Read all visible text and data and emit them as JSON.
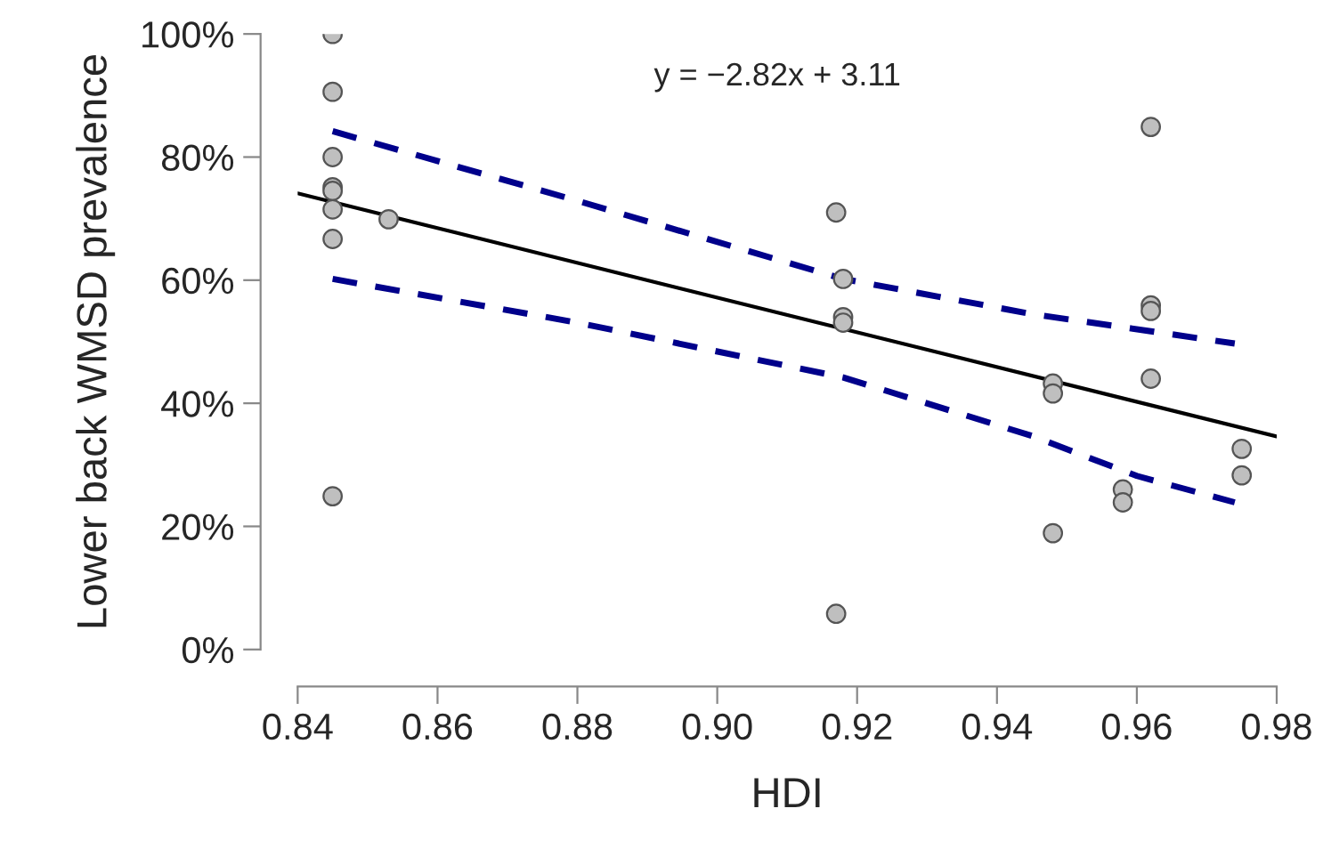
{
  "chart_data": {
    "type": "scatter",
    "xlabel": "HDI",
    "ylabel": "Lower back WMSD prevalence",
    "annotations": [
      "y = −2.82x + 3.11"
    ],
    "series": [
      {
        "color": "#bfbfbf",
        "marker": "circle",
        "x": [
          0.845,
          0.845,
          0.845,
          0.845,
          0.845,
          0.845,
          0.845,
          0.845,
          0.853,
          0.917,
          0.917,
          0.918,
          0.918,
          0.918,
          0.948,
          0.948,
          0.948,
          0.958,
          0.958,
          0.962,
          0.962,
          0.962,
          0.962,
          0.975,
          0.975
        ],
        "values": [
          100,
          90.6,
          80,
          75.1,
          74.5,
          71.5,
          66.7,
          24.9,
          69.9,
          71.0,
          5.8,
          60.2,
          54.0,
          53.1,
          43.2,
          41.6,
          18.9,
          26.0,
          23.9,
          84.9,
          55.9,
          55.0,
          44.0,
          32.6,
          28.3
        ]
      },
      {
        "type": "line",
        "color": "#000000",
        "line_style": "solid",
        "x": [
          0.84,
          0.98
        ],
        "values": [
          74.1,
          34.6
        ]
      },
      {
        "type": "line",
        "color": "#00008b",
        "line_style": "dashed",
        "x": [
          0.845,
          0.88,
          0.918,
          0.945,
          0.962,
          0.974
        ],
        "values": [
          84.2,
          72.9,
          60.2,
          54.5,
          51.7,
          49.7
        ]
      },
      {
        "type": "line",
        "color": "#00008b",
        "line_style": "dashed",
        "x": [
          0.845,
          0.88,
          0.918,
          0.945,
          0.96,
          0.974
        ],
        "values": [
          60.2,
          53.1,
          44.2,
          34.7,
          28.2,
          23.9
        ]
      }
    ],
    "xlim": [
      0.84,
      0.98
    ],
    "xticks": [
      {
        "value": 0.84,
        "label": "0.84"
      },
      {
        "value": 0.86,
        "label": "0.86"
      },
      {
        "value": 0.88,
        "label": "0.88"
      },
      {
        "value": 0.9,
        "label": "0.90"
      },
      {
        "value": 0.92,
        "label": "0.92"
      },
      {
        "value": 0.94,
        "label": "0.94"
      },
      {
        "value": 0.96,
        "label": "0.96"
      },
      {
        "value": 0.98,
        "label": "0.98"
      }
    ],
    "ylim": [
      0,
      100
    ],
    "yticks": [
      {
        "value": 0,
        "label": "0%"
      },
      {
        "value": 20,
        "label": "20%"
      },
      {
        "value": 40,
        "label": "40%"
      },
      {
        "value": 60,
        "label": "60%"
      },
      {
        "value": 80,
        "label": "80%"
      },
      {
        "value": 100,
        "label": "100%"
      }
    ],
    "grid": false,
    "legend": false
  }
}
